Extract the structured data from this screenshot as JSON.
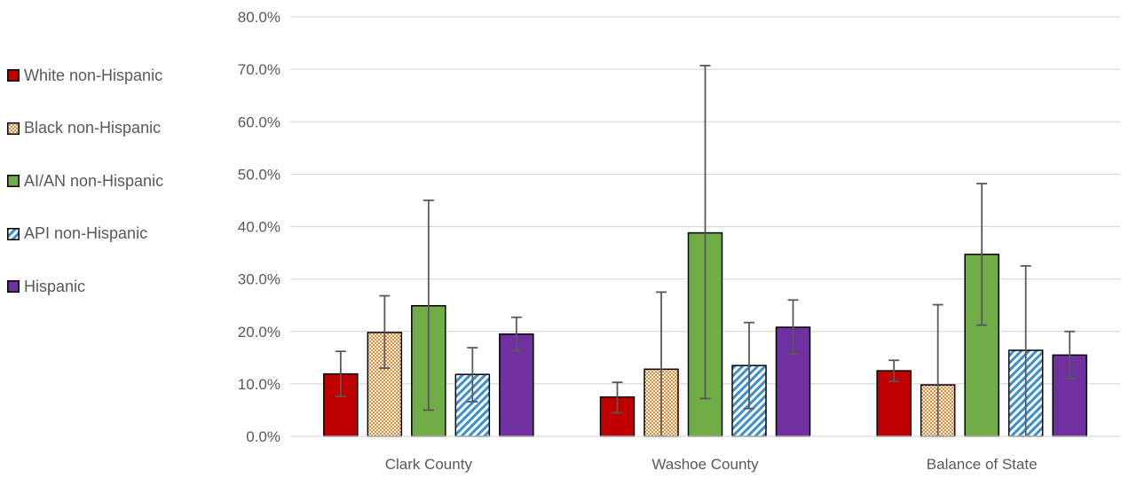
{
  "chart_data": {
    "type": "bar",
    "title": "",
    "xlabel": "",
    "ylabel": "",
    "ylim": [
      0,
      0.8
    ],
    "yticks": [
      0,
      0.1,
      0.2,
      0.3,
      0.4,
      0.5,
      0.6,
      0.7,
      0.8
    ],
    "ytick_labels": [
      "0.0%",
      "10.0%",
      "20.0%",
      "30.0%",
      "40.0%",
      "50.0%",
      "60.0%",
      "70.0%",
      "80.0%"
    ],
    "grid": true,
    "legend_position": "left",
    "categories": [
      "Clark County",
      "Washoe County",
      "Balance of State"
    ],
    "series": [
      {
        "name": "White non-Hispanic",
        "color": "#c00000",
        "pattern": "solid",
        "values": [
          0.119,
          0.075,
          0.125
        ],
        "err_low": [
          0.076,
          0.045,
          0.105
        ],
        "err_high": [
          0.162,
          0.103,
          0.145
        ]
      },
      {
        "name": "Black non-Hispanic",
        "color": "#e8a05a",
        "pattern": "dots",
        "values": [
          0.198,
          0.128,
          0.098
        ],
        "err_low": [
          0.13,
          0.0,
          0.0
        ],
        "err_high": [
          0.268,
          0.275,
          0.251
        ]
      },
      {
        "name": "AI/AN non-Hispanic",
        "color": "#70ad47",
        "pattern": "solid",
        "values": [
          0.249,
          0.388,
          0.347
        ],
        "err_low": [
          0.05,
          0.072,
          0.212
        ],
        "err_high": [
          0.45,
          0.707,
          0.482
        ]
      },
      {
        "name": "API non-Hispanic",
        "color": "#4a9fd8",
        "pattern": "diagonal",
        "values": [
          0.118,
          0.135,
          0.164
        ],
        "err_low": [
          0.066,
          0.053,
          0.0
        ],
        "err_high": [
          0.169,
          0.217,
          0.325
        ]
      },
      {
        "name": "Hispanic",
        "color": "#7030a0",
        "pattern": "solid",
        "values": [
          0.195,
          0.208,
          0.155
        ],
        "err_low": [
          0.163,
          0.157,
          0.11
        ],
        "err_high": [
          0.227,
          0.26,
          0.2
        ]
      }
    ]
  }
}
